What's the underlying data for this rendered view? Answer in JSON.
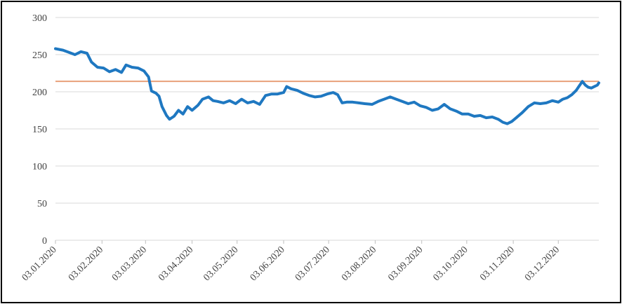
{
  "chart_data": {
    "type": "line",
    "title": "",
    "xlabel": "",
    "ylabel": "",
    "ylim": [
      0,
      300
    ],
    "y_ticks": [
      "0",
      "50",
      "100",
      "150",
      "200",
      "250",
      "300"
    ],
    "grid": "horizontal",
    "x_ticks": [
      "03.01.2020",
      "03.02.2020",
      "03.03.2020",
      "03.04.2020",
      "03.05.2020",
      "03.06.2020",
      "03.07.2020",
      "03.08.2020",
      "03.09.2020",
      "03.10.2020",
      "03.11.2020",
      "03.12.2020"
    ],
    "x_tick_dates": [
      "2020-01-03",
      "2020-02-03",
      "2020-03-03",
      "2020-04-03",
      "2020-05-03",
      "2020-06-03",
      "2020-07-03",
      "2020-08-03",
      "2020-09-03",
      "2020-10-03",
      "2020-11-03",
      "2020-12-03"
    ],
    "x_range": [
      "2020-01-03",
      "2020-12-30"
    ],
    "series": [
      {
        "color": "#1f78c1",
        "points": [
          [
            "2020-01-03",
            258
          ],
          [
            "2020-01-08",
            256
          ],
          [
            "2020-01-12",
            253
          ],
          [
            "2020-01-16",
            250
          ],
          [
            "2020-01-20",
            254
          ],
          [
            "2020-01-24",
            252
          ],
          [
            "2020-01-27",
            240
          ],
          [
            "2020-01-31",
            233
          ],
          [
            "2020-02-04",
            232
          ],
          [
            "2020-02-08",
            227
          ],
          [
            "2020-02-12",
            230
          ],
          [
            "2020-02-16",
            226
          ],
          [
            "2020-02-19",
            236
          ],
          [
            "2020-02-23",
            233
          ],
          [
            "2020-02-27",
            232
          ],
          [
            "2020-03-02",
            228
          ],
          [
            "2020-03-05",
            220
          ],
          [
            "2020-03-07",
            201
          ],
          [
            "2020-03-10",
            198
          ],
          [
            "2020-03-12",
            194
          ],
          [
            "2020-03-14",
            180
          ],
          [
            "2020-03-17",
            168
          ],
          [
            "2020-03-19",
            163
          ],
          [
            "2020-03-22",
            167
          ],
          [
            "2020-03-25",
            175
          ],
          [
            "2020-03-28",
            170
          ],
          [
            "2020-03-31",
            180
          ],
          [
            "2020-04-03",
            175
          ],
          [
            "2020-04-07",
            182
          ],
          [
            "2020-04-10",
            190
          ],
          [
            "2020-04-14",
            193
          ],
          [
            "2020-04-17",
            188
          ],
          [
            "2020-04-20",
            187
          ],
          [
            "2020-04-24",
            185
          ],
          [
            "2020-04-28",
            188
          ],
          [
            "2020-05-02",
            184
          ],
          [
            "2020-05-06",
            190
          ],
          [
            "2020-05-10",
            185
          ],
          [
            "2020-05-14",
            187
          ],
          [
            "2020-05-18",
            183
          ],
          [
            "2020-05-22",
            195
          ],
          [
            "2020-05-26",
            197
          ],
          [
            "2020-05-30",
            197
          ],
          [
            "2020-06-03",
            199
          ],
          [
            "2020-06-05",
            207
          ],
          [
            "2020-06-08",
            204
          ],
          [
            "2020-06-12",
            202
          ],
          [
            "2020-06-16",
            198
          ],
          [
            "2020-06-20",
            195
          ],
          [
            "2020-06-24",
            193
          ],
          [
            "2020-06-28",
            194
          ],
          [
            "2020-07-02",
            197
          ],
          [
            "2020-07-06",
            199
          ],
          [
            "2020-07-09",
            196
          ],
          [
            "2020-07-12",
            185
          ],
          [
            "2020-07-15",
            186
          ],
          [
            "2020-07-19",
            186
          ],
          [
            "2020-07-23",
            185
          ],
          [
            "2020-07-27",
            184
          ],
          [
            "2020-08-01",
            183
          ],
          [
            "2020-08-05",
            187
          ],
          [
            "2020-08-09",
            190
          ],
          [
            "2020-08-13",
            193
          ],
          [
            "2020-08-17",
            190
          ],
          [
            "2020-08-21",
            187
          ],
          [
            "2020-08-25",
            184
          ],
          [
            "2020-08-29",
            186
          ],
          [
            "2020-09-02",
            181
          ],
          [
            "2020-09-06",
            179
          ],
          [
            "2020-09-10",
            175
          ],
          [
            "2020-09-14",
            177
          ],
          [
            "2020-09-18",
            183
          ],
          [
            "2020-09-22",
            177
          ],
          [
            "2020-09-26",
            174
          ],
          [
            "2020-09-30",
            170
          ],
          [
            "2020-10-04",
            170
          ],
          [
            "2020-10-08",
            167
          ],
          [
            "2020-10-12",
            168
          ],
          [
            "2020-10-16",
            165
          ],
          [
            "2020-10-20",
            166
          ],
          [
            "2020-10-24",
            163
          ],
          [
            "2020-10-27",
            159
          ],
          [
            "2020-10-30",
            157
          ],
          [
            "2020-11-02",
            160
          ],
          [
            "2020-11-05",
            165
          ],
          [
            "2020-11-09",
            172
          ],
          [
            "2020-11-13",
            180
          ],
          [
            "2020-11-17",
            185
          ],
          [
            "2020-11-21",
            184
          ],
          [
            "2020-11-25",
            185
          ],
          [
            "2020-11-29",
            188
          ],
          [
            "2020-12-03",
            186
          ],
          [
            "2020-12-06",
            190
          ],
          [
            "2020-12-09",
            192
          ],
          [
            "2020-12-12",
            196
          ],
          [
            "2020-12-15",
            202
          ],
          [
            "2020-12-17",
            208
          ],
          [
            "2020-12-19",
            214
          ],
          [
            "2020-12-21",
            209
          ],
          [
            "2020-12-23",
            206
          ],
          [
            "2020-12-25",
            205
          ],
          [
            "2020-12-27",
            207
          ],
          [
            "2020-12-29",
            209
          ],
          [
            "2020-12-30",
            212
          ]
        ]
      }
    ],
    "reference_line": {
      "value": 214,
      "color": "#e8a07a"
    }
  }
}
